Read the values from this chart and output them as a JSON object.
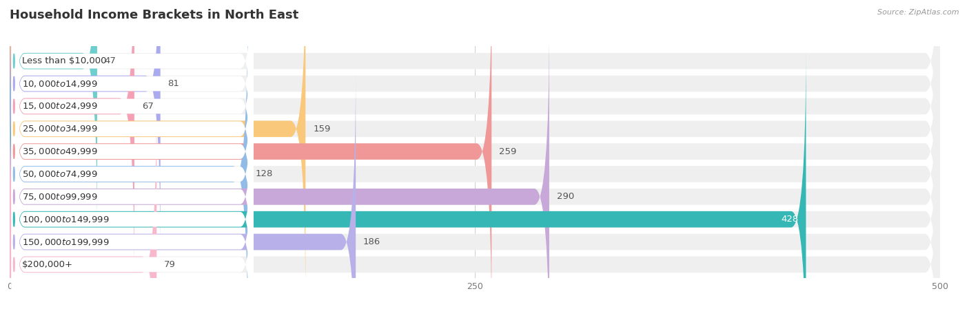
{
  "title": "Household Income Brackets in North East",
  "source": "Source: ZipAtlas.com",
  "categories": [
    "Less than $10,000",
    "$10,000 to $14,999",
    "$15,000 to $24,999",
    "$25,000 to $34,999",
    "$35,000 to $49,999",
    "$50,000 to $74,999",
    "$75,000 to $99,999",
    "$100,000 to $149,999",
    "$150,000 to $199,999",
    "$200,000+"
  ],
  "values": [
    47,
    81,
    67,
    159,
    259,
    128,
    290,
    428,
    186,
    79
  ],
  "bar_colors": [
    "#6dcece",
    "#aaaaee",
    "#f5a0b5",
    "#f9c87a",
    "#f09898",
    "#92bce8",
    "#c8a8d8",
    "#35b8b5",
    "#b8b0e8",
    "#f8b8cc"
  ],
  "xlim": [
    0,
    500
  ],
  "xticks": [
    0,
    250,
    500
  ],
  "background_color": "#ffffff",
  "row_bg_color": "#efefef",
  "pill_color": "#ffffff",
  "title_fontsize": 13,
  "label_fontsize": 9.5,
  "value_fontsize": 9.5,
  "tick_fontsize": 9
}
